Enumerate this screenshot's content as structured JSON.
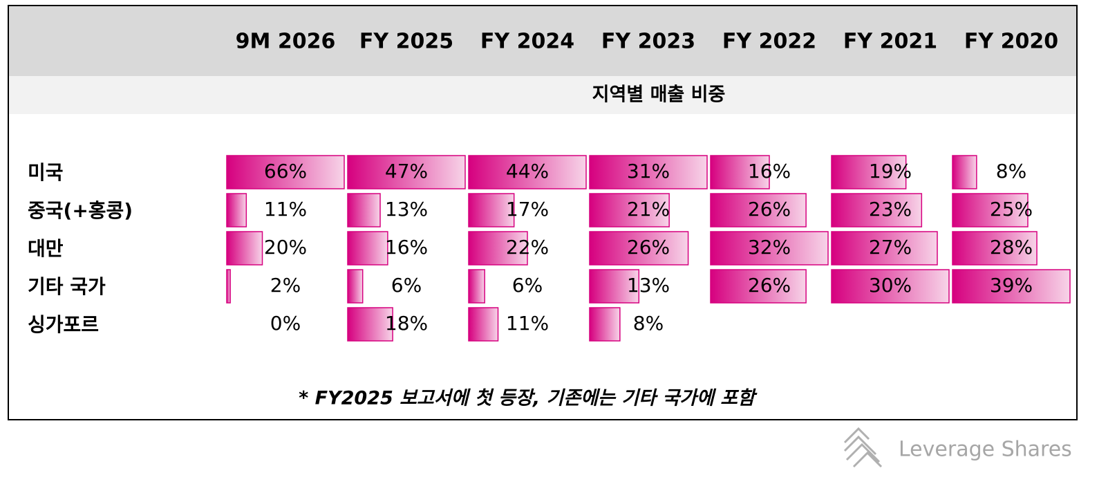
{
  "table": {
    "columns": [
      "9M 2026",
      "FY 2025",
      "FY 2024",
      "FY 2023",
      "FY 2022",
      "FY 2021",
      "FY 2020"
    ],
    "subtitle": "지역별 매출 비중",
    "rows": [
      {
        "label": "미국",
        "values": [
          66,
          47,
          44,
          31,
          16,
          19,
          8
        ],
        "value_labels": [
          "66%",
          "47%",
          "44%",
          "31%",
          "16%",
          "19%",
          "8%"
        ]
      },
      {
        "label": "중국(+홍콩)",
        "values": [
          11,
          13,
          17,
          21,
          26,
          23,
          25
        ],
        "value_labels": [
          "11%",
          "13%",
          "17%",
          "21%",
          "26%",
          "23%",
          "25%"
        ]
      },
      {
        "label": "대만",
        "values": [
          20,
          16,
          22,
          26,
          32,
          27,
          28
        ],
        "value_labels": [
          "20%",
          "16%",
          "22%",
          "26%",
          "32%",
          "27%",
          "28%"
        ]
      },
      {
        "label": "기타 국가",
        "values": [
          2,
          6,
          6,
          13,
          26,
          30,
          39
        ],
        "value_labels": [
          "2%",
          "6%",
          "6%",
          "13%",
          "26%",
          "30%",
          "39%"
        ]
      },
      {
        "label": "싱가포르",
        "values": [
          0,
          18,
          11,
          8,
          null,
          null,
          null
        ],
        "value_labels": [
          "0%",
          "18%",
          "11%",
          "8%",
          null,
          null,
          null
        ]
      }
    ],
    "footnote": "* FY2025 보고서에 첫 등장, 기존에는 기타 국가에 포함",
    "bar_color": "#d6007f"
  },
  "footer": {
    "brand": "Leverage Shares"
  }
}
